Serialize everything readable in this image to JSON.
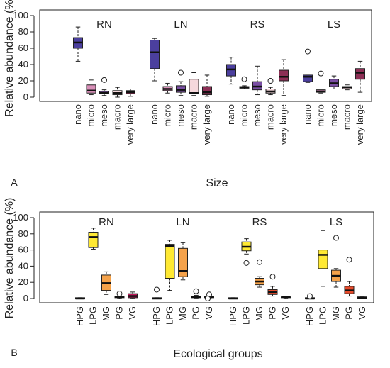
{
  "chart_data": [
    {
      "type": "box",
      "panel_label": "A",
      "ylabel": "Relative abundance (%)",
      "xlabel": "Size",
      "ylim": [
        0,
        100
      ],
      "yticks": [
        0,
        20,
        40,
        60,
        80,
        100
      ],
      "groups": [
        {
          "name": "RN",
          "boxes": [
            {
              "label": "nano",
              "color": "#4b3f9e",
              "min": 44,
              "q1": 60,
              "median": 67,
              "q3": 73,
              "max": 86,
              "outliers": []
            },
            {
              "label": "micro",
              "color": "#d88fb8",
              "min": 3,
              "q1": 5,
              "median": 8,
              "q3": 15,
              "max": 21,
              "outliers": []
            },
            {
              "label": "meso",
              "color": "#7a4ea3",
              "min": 2,
              "q1": 4,
              "median": 5,
              "q3": 7,
              "max": 9,
              "outliers": [
                21
              ]
            },
            {
              "label": "macro",
              "color": "#f6d8dc",
              "min": 0,
              "q1": 3,
              "median": 5,
              "q3": 8,
              "max": 12,
              "outliers": []
            },
            {
              "label": "very large",
              "color": "#8c2f55",
              "min": 1,
              "q1": 4,
              "median": 6,
              "q3": 8,
              "max": 10,
              "outliers": []
            }
          ]
        },
        {
          "name": "LN",
          "boxes": [
            {
              "label": "nano",
              "color": "#4b3f9e",
              "min": 20,
              "q1": 35,
              "median": 55,
              "q3": 70,
              "max": 72,
              "outliers": []
            },
            {
              "label": "micro",
              "color": "#d88fb8",
              "min": 5,
              "q1": 8,
              "median": 10,
              "q3": 13,
              "max": 17,
              "outliers": []
            },
            {
              "label": "meso",
              "color": "#7a4ea3",
              "min": 2,
              "q1": 6,
              "median": 9,
              "q3": 14,
              "max": 19,
              "outliers": [
                30
              ]
            },
            {
              "label": "macro",
              "color": "#f6d8dc",
              "min": 2,
              "q1": 4,
              "median": 5,
              "q3": 22,
              "max": 30,
              "outliers": []
            },
            {
              "label": "very large",
              "color": "#8c2f55",
              "min": 1,
              "q1": 3,
              "median": 6,
              "q3": 13,
              "max": 27,
              "outliers": []
            }
          ]
        },
        {
          "name": "RS",
          "boxes": [
            {
              "label": "nano",
              "color": "#4b3f9e",
              "min": 16,
              "q1": 26,
              "median": 34,
              "q3": 40,
              "max": 49,
              "outliers": []
            },
            {
              "label": "micro",
              "color": "#d88fb8",
              "min": 10,
              "q1": 11,
              "median": 12,
              "q3": 13,
              "max": 14,
              "outliers": [
                22
              ]
            },
            {
              "label": "meso",
              "color": "#7a4ea3",
              "min": 3,
              "q1": 9,
              "median": 13,
              "q3": 19,
              "max": 38,
              "outliers": []
            },
            {
              "label": "macro",
              "color": "#f6d8dc",
              "min": 3,
              "q1": 5,
              "median": 7,
              "q3": 10,
              "max": 12,
              "outliers": [
                20
              ]
            },
            {
              "label": "very large",
              "color": "#8c2f55",
              "min": 2,
              "q1": 20,
              "median": 25,
              "q3": 33,
              "max": 46,
              "outliers": []
            }
          ]
        },
        {
          "name": "LS",
          "boxes": [
            {
              "label": "nano",
              "color": "#4b3f9e",
              "min": 18,
              "q1": 19,
              "median": 25,
              "q3": 27,
              "max": 27,
              "outliers": [
                56
              ]
            },
            {
              "label": "micro",
              "color": "#d88fb8",
              "min": 5,
              "q1": 6,
              "median": 7,
              "q3": 9,
              "max": 10,
              "outliers": [
                29
              ]
            },
            {
              "label": "meso",
              "color": "#7a4ea3",
              "min": 10,
              "q1": 13,
              "median": 17,
              "q3": 22,
              "max": 26,
              "outliers": []
            },
            {
              "label": "macro",
              "color": "#f6d8dc",
              "min": 9,
              "q1": 10,
              "median": 12,
              "q3": 13,
              "max": 15,
              "outliers": []
            },
            {
              "label": "very large",
              "color": "#8c2f55",
              "min": 6,
              "q1": 22,
              "median": 30,
              "q3": 35,
              "max": 44,
              "outliers": []
            }
          ]
        }
      ]
    },
    {
      "type": "box",
      "panel_label": "B",
      "ylabel": "Relative abundance (%)",
      "xlabel": "Ecological groups",
      "ylim": [
        0,
        100
      ],
      "yticks": [
        0,
        20,
        40,
        60,
        80,
        100
      ],
      "groups": [
        {
          "name": "RN",
          "boxes": [
            {
              "label": "HPG",
              "color": "#9a9a9a",
              "min": 0,
              "q1": 0,
              "median": 0,
              "q3": 1,
              "max": 1,
              "outliers": []
            },
            {
              "label": "LPG",
              "color": "#ffe933",
              "min": 61,
              "q1": 63,
              "median": 76,
              "q3": 82,
              "max": 87,
              "outliers": []
            },
            {
              "label": "MG",
              "color": "#f5a24a",
              "min": 5,
              "q1": 10,
              "median": 19,
              "q3": 29,
              "max": 33,
              "outliers": []
            },
            {
              "label": "PG",
              "color": "#e64b2b",
              "min": 0,
              "q1": 1,
              "median": 2,
              "q3": 3,
              "max": 3,
              "outliers": [
                6
              ]
            },
            {
              "label": "VG",
              "color": "#c2185b",
              "min": 0,
              "q1": 1,
              "median": 3,
              "q3": 6,
              "max": 8,
              "outliers": []
            }
          ]
        },
        {
          "name": "LN",
          "boxes": [
            {
              "label": "HPG",
              "color": "#9a9a9a",
              "min": 0,
              "q1": 0,
              "median": 0,
              "q3": 1,
              "max": 1,
              "outliers": [
                11
              ]
            },
            {
              "label": "LPG",
              "color": "#ffe933",
              "min": 10,
              "q1": 25,
              "median": 65,
              "q3": 67,
              "max": 72,
              "outliers": []
            },
            {
              "label": "MG",
              "color": "#f5a24a",
              "min": 23,
              "q1": 27,
              "median": 34,
              "q3": 62,
              "max": 69,
              "outliers": []
            },
            {
              "label": "PG",
              "color": "#e64b2b",
              "min": 0,
              "q1": 1,
              "median": 2,
              "q3": 3,
              "max": 4,
              "outliers": [
                9
              ]
            },
            {
              "label": "VG",
              "color": "#c2185b",
              "min": 0,
              "q1": 1,
              "median": 2,
              "q3": 3,
              "max": 4,
              "outliers": [
                5,
                0
              ]
            }
          ]
        },
        {
          "name": "RS",
          "boxes": [
            {
              "label": "HPG",
              "color": "#9a9a9a",
              "min": 0,
              "q1": 0,
              "median": 0,
              "q3": 1,
              "max": 1,
              "outliers": []
            },
            {
              "label": "LPG",
              "color": "#ffe933",
              "min": 55,
              "q1": 59,
              "median": 64,
              "q3": 70,
              "max": 74,
              "outliers": [
                44
              ]
            },
            {
              "label": "MG",
              "color": "#f5a24a",
              "min": 14,
              "q1": 17,
              "median": 21,
              "q3": 25,
              "max": 27,
              "outliers": [
                45
              ]
            },
            {
              "label": "PG",
              "color": "#e64b2b",
              "min": 3,
              "q1": 5,
              "median": 8,
              "q3": 11,
              "max": 15,
              "outliers": [
                27
              ]
            },
            {
              "label": "VG",
              "color": "#c2185b",
              "min": 0,
              "q1": 1,
              "median": 2,
              "q3": 2,
              "max": 3,
              "outliers": []
            }
          ]
        },
        {
          "name": "LS",
          "boxes": [
            {
              "label": "HPG",
              "color": "#9a9a9a",
              "min": 0,
              "q1": 0,
              "median": 0,
              "q3": 1,
              "max": 1,
              "outliers": [
                3
              ]
            },
            {
              "label": "LPG",
              "color": "#ffe933",
              "min": 15,
              "q1": 37,
              "median": 54,
              "q3": 60,
              "max": 84,
              "outliers": []
            },
            {
              "label": "MG",
              "color": "#f5a24a",
              "min": 14,
              "q1": 21,
              "median": 28,
              "q3": 35,
              "max": 37,
              "outliers": [
                75
              ]
            },
            {
              "label": "PG",
              "color": "#e64b2b",
              "min": 3,
              "q1": 6,
              "median": 10,
              "q3": 15,
              "max": 21,
              "outliers": [
                48
              ]
            },
            {
              "label": "VG",
              "color": "#c2185b",
              "min": 0,
              "q1": 0,
              "median": 1,
              "q3": 2,
              "max": 2,
              "outliers": []
            }
          ]
        }
      ]
    }
  ]
}
